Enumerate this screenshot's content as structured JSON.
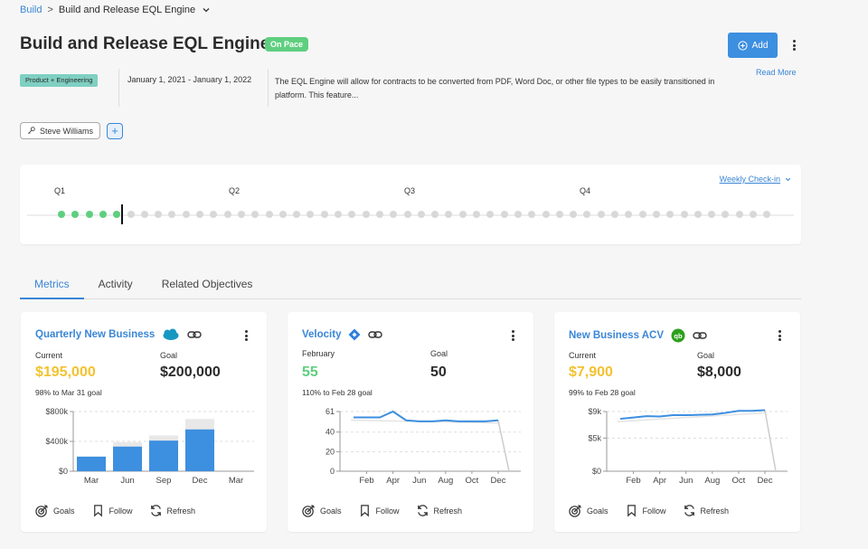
{
  "breadcrumb": {
    "root": "Build",
    "separator": ">",
    "current": "Build and Release EQL Engine"
  },
  "header": {
    "title": "Build and Release EQL Engine",
    "status": "On Pace",
    "add_label": "Add",
    "read_more": "Read More",
    "tag": "Product + Engineering",
    "dates": "January 1, 2021 - January 1, 2022",
    "description": "The EQL Engine will allow for contracts to be converted from PDF, Word Doc, or other file types to be easily transitioned in platform. This feature...",
    "owner": "Steve Williams",
    "add_owner": "+"
  },
  "timeline": {
    "weekly_label": "Weekly Check-in",
    "quarters": [
      "Q1",
      "Q2",
      "Q3",
      "Q4"
    ],
    "total_weeks": 52,
    "completed_weeks": 5
  },
  "tabs": [
    "Metrics",
    "Activity",
    "Related Objectives"
  ],
  "colors": {
    "accent": "#3a86d6",
    "on_pace": "#5fcf7f",
    "current_value": "#f2c230",
    "bar": "#3d8fe0",
    "bar_goal": "#e8e8e8"
  },
  "cards": [
    {
      "title": "Quarterly New Business",
      "source_icon": "salesforce-icon",
      "current_label": "Current",
      "current_value": "$195,000",
      "goal_label": "Goal",
      "goal_value": "$200,000",
      "progress_text": "98% to Mar 31 goal",
      "chart_data": {
        "type": "bar",
        "categories": [
          "Mar",
          "Jun",
          "Sep",
          "Dec",
          "Mar"
        ],
        "values": [
          195000,
          330000,
          410000,
          560000,
          null
        ],
        "goals": [
          200000,
          390000,
          480000,
          700000,
          null
        ],
        "ylim": [
          0,
          800000
        ],
        "yticks": [
          0,
          400000,
          800000
        ],
        "ytick_labels": [
          "$0",
          "$400k",
          "$800k"
        ],
        "grid": true
      }
    },
    {
      "title": "Velocity",
      "source_icon": "jira-icon",
      "current_label": "February",
      "current_value": "55",
      "goal_label": "Goal",
      "goal_value": "50",
      "progress_text": "110% to Feb 28 goal",
      "chart_data": {
        "type": "line",
        "categories": [
          "Jan",
          "Feb",
          "Mar",
          "Apr",
          "May",
          "Jun",
          "Jul",
          "Aug",
          "Sep",
          "Oct",
          "Nov",
          "Dec"
        ],
        "tick_labels": [
          "Feb",
          "Apr",
          "Jun",
          "Aug",
          "Oct",
          "Dec"
        ],
        "values": [
          55,
          55,
          55,
          61,
          52,
          51,
          51,
          52,
          51,
          51,
          51,
          52
        ],
        "ylim": [
          0,
          61
        ],
        "yticks": [
          0,
          20,
          40,
          61
        ],
        "grid": true
      }
    },
    {
      "title": "New Business ACV",
      "source_icon": "quickbooks-icon",
      "current_label": "Current",
      "current_value": "$7,900",
      "goal_label": "Goal",
      "goal_value": "$8,000",
      "progress_text": "99% to Feb 28 goal",
      "chart_data": {
        "type": "line",
        "categories": [
          "Jan",
          "Feb",
          "Mar",
          "Apr",
          "May",
          "Jun",
          "Jul",
          "Aug",
          "Sep",
          "Oct",
          "Nov",
          "Dec"
        ],
        "tick_labels": [
          "Feb",
          "Apr",
          "Jun",
          "Aug",
          "Oct",
          "Dec"
        ],
        "values": [
          7900,
          8100,
          8300,
          8250,
          8450,
          8450,
          8500,
          8550,
          8800,
          9100,
          9100,
          9200
        ],
        "ylim": [
          0,
          9000
        ],
        "yticks": [
          0,
          5000,
          9000
        ],
        "ytick_labels": [
          "$0",
          "$5k",
          "$9k"
        ],
        "grid": true
      }
    }
  ],
  "card_footer": {
    "goals": "Goals",
    "follow": "Follow",
    "refresh": "Refresh"
  }
}
